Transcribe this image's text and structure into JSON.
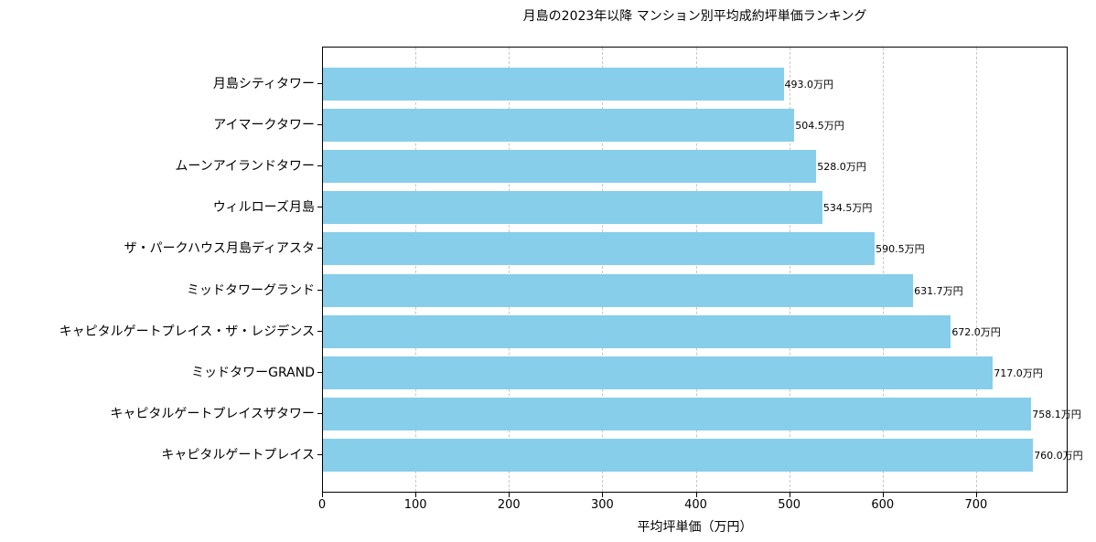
{
  "chart_data": {
    "type": "bar",
    "orientation": "horizontal",
    "title": "月島の2023年以降 マンション別平均成約坪単価ランキング",
    "xlabel": "平均坪単価（万円）",
    "ylabel": "",
    "xlim": [
      0,
      798
    ],
    "xticks": [
      0,
      100,
      200,
      300,
      400,
      500,
      600,
      700
    ],
    "grid": "x-dashed",
    "bar_color": "#87ceeb",
    "categories": [
      "月島シティタワー",
      "アイマークタワー",
      "ムーンアイランドタワー",
      "ウィルローズ月島",
      "ザ・パークハウス月島ディアスタ",
      "ミッドタワーグランド",
      "キャピタルゲートプレイス・ザ・レジデンス",
      "ミッドタワーGRAND",
      "キャピタルゲートプレイスザタワー",
      "キャピタルゲートプレイス"
    ],
    "values": [
      493.0,
      504.5,
      528.0,
      534.5,
      590.5,
      631.7,
      672.0,
      717.0,
      758.1,
      760.0
    ],
    "value_labels": [
      "493.0万円",
      "504.5万円",
      "528.0万円",
      "534.5万円",
      "590.5万円",
      "631.7万円",
      "672.0万円",
      "717.0万円",
      "758.1万円",
      "760.0万円"
    ]
  }
}
